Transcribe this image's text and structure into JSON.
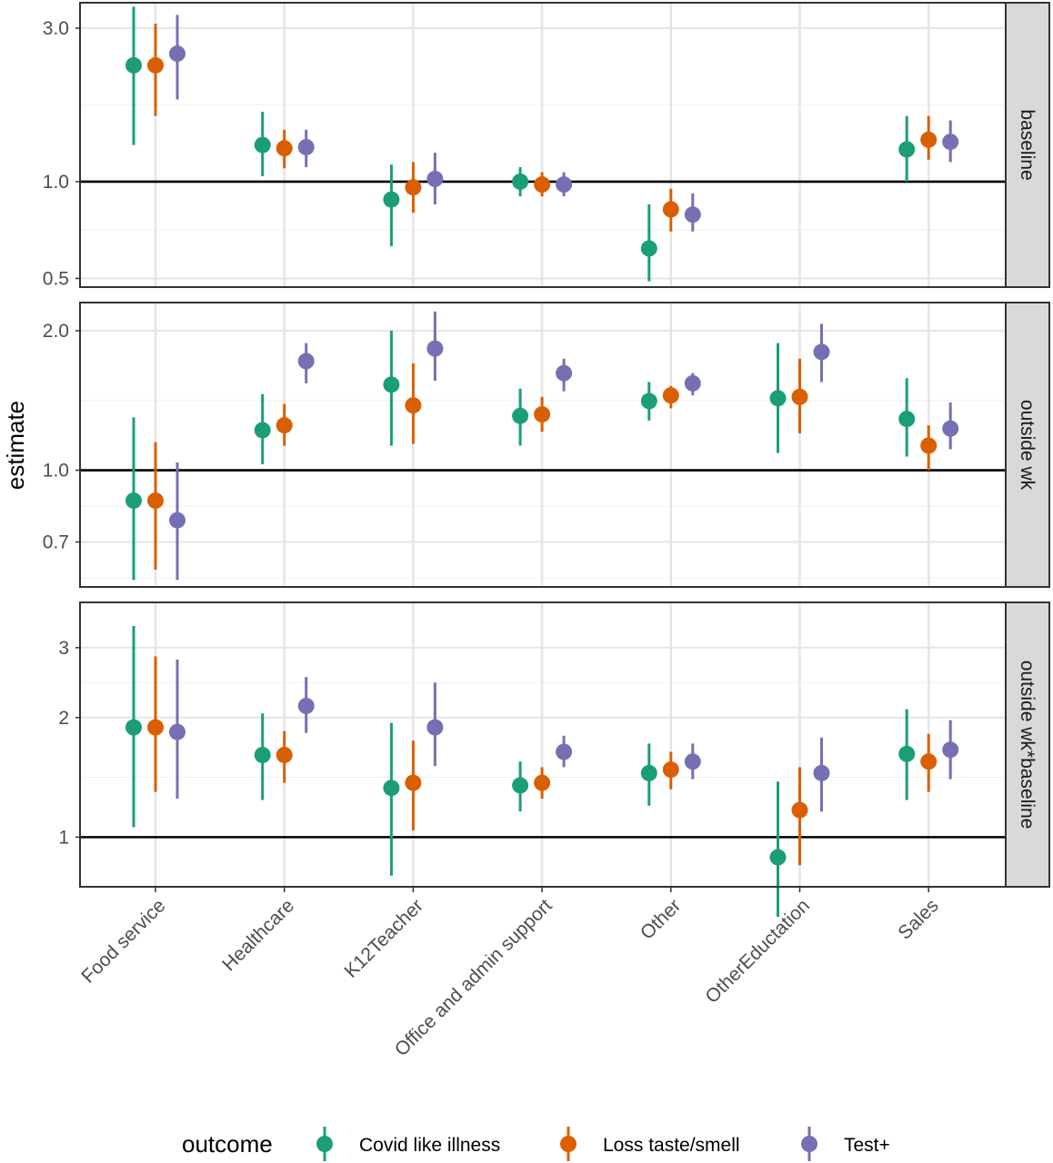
{
  "chart_data": {
    "type": "pointrange",
    "ylabel": "estimate",
    "y_scale": "log",
    "categories": [
      "Food service",
      "Healthcare",
      "K12Teacher",
      "Office and admin support",
      "Other",
      "OtherEductation",
      "Sales"
    ],
    "legend": {
      "title": "outcome",
      "placement": "bottom",
      "entries": [
        "Covid like illness",
        "Loss taste/smell",
        "Test+"
      ]
    },
    "colors": {
      "Covid like illness": "#1b9e77",
      "Loss taste/smell": "#d95f02",
      "Test+": "#7570b3"
    },
    "reference_line": 1.0,
    "panels": [
      {
        "strip": "baseline",
        "ylim": [
          0.47,
          3.6
        ],
        "yticks": [
          0.5,
          1.0,
          3.0
        ],
        "ytick_labels": [
          "0.5",
          "1.0",
          "3.0"
        ],
        "series": [
          {
            "name": "Covid like illness",
            "est": [
              2.3,
              1.3,
              0.88,
              1.0,
              0.62,
              null,
              1.26
            ],
            "lo": [
              1.3,
              1.04,
              0.63,
              0.9,
              0.49,
              null,
              1.0
            ],
            "hi": [
              3.5,
              1.65,
              1.13,
              1.11,
              0.85,
              null,
              1.6
            ]
          },
          {
            "name": "Loss taste/smell",
            "est": [
              2.3,
              1.27,
              0.96,
              0.98,
              0.82,
              null,
              1.35
            ],
            "lo": [
              1.6,
              1.1,
              0.8,
              0.9,
              0.7,
              null,
              1.17
            ],
            "hi": [
              3.1,
              1.45,
              1.15,
              1.07,
              0.95,
              null,
              1.6
            ]
          },
          {
            "name": "Test+",
            "est": [
              2.5,
              1.28,
              1.02,
              0.98,
              0.79,
              null,
              1.33
            ],
            "lo": [
              1.8,
              1.11,
              0.85,
              0.9,
              0.7,
              null,
              1.15
            ],
            "hi": [
              3.3,
              1.45,
              1.23,
              1.07,
              0.92,
              null,
              1.55
            ]
          }
        ]
      },
      {
        "strip": "outside wk",
        "ylim": [
          0.56,
          2.3
        ],
        "yticks": [
          0.7,
          1.0,
          2.0
        ],
        "ytick_labels": [
          "0.7",
          "1.0",
          "2.0"
        ],
        "series": [
          {
            "name": "Covid like illness",
            "est": [
              0.86,
              1.22,
              1.53,
              1.31,
              1.41,
              1.43,
              1.29
            ],
            "lo": [
              0.58,
              1.03,
              1.13,
              1.13,
              1.28,
              1.09,
              1.07
            ],
            "hi": [
              1.3,
              1.46,
              2.0,
              1.5,
              1.55,
              1.88,
              1.58
            ]
          },
          {
            "name": "Loss taste/smell",
            "est": [
              0.86,
              1.25,
              1.38,
              1.32,
              1.45,
              1.44,
              1.13
            ],
            "lo": [
              0.61,
              1.13,
              1.14,
              1.21,
              1.36,
              1.2,
              1.0
            ],
            "hi": [
              1.15,
              1.39,
              1.7,
              1.44,
              1.52,
              1.74,
              1.25
            ]
          },
          {
            "name": "Test+",
            "est": [
              0.78,
              1.72,
              1.83,
              1.62,
              1.54,
              1.8,
              1.23
            ],
            "lo": [
              0.58,
              1.54,
              1.56,
              1.48,
              1.45,
              1.55,
              1.11
            ],
            "hi": [
              1.04,
              1.88,
              2.2,
              1.74,
              1.62,
              2.07,
              1.4
            ]
          }
        ]
      },
      {
        "strip": "outside wk*baseline",
        "ylim": [
          0.75,
          3.9
        ],
        "yticks": [
          1,
          2,
          3
        ],
        "ytick_labels": [
          "1",
          "2",
          "3"
        ],
        "series": [
          {
            "name": "Covid like illness",
            "est": [
              1.89,
              1.61,
              1.33,
              1.35,
              1.45,
              0.89,
              1.62
            ],
            "lo": [
              1.06,
              1.24,
              0.8,
              1.16,
              1.2,
              0.63,
              1.24
            ],
            "hi": [
              3.4,
              2.05,
              1.94,
              1.55,
              1.72,
              1.38,
              2.1
            ]
          },
          {
            "name": "Loss taste/smell",
            "est": [
              1.89,
              1.61,
              1.37,
              1.37,
              1.48,
              1.17,
              1.55
            ],
            "lo": [
              1.3,
              1.37,
              1.04,
              1.25,
              1.32,
              0.85,
              1.3
            ],
            "hi": [
              2.85,
              1.85,
              1.75,
              1.5,
              1.64,
              1.5,
              1.82
            ]
          },
          {
            "name": "Test+",
            "est": [
              1.84,
              2.14,
              1.89,
              1.64,
              1.55,
              1.45,
              1.66
            ],
            "lo": [
              1.25,
              1.83,
              1.51,
              1.5,
              1.4,
              1.16,
              1.4
            ],
            "hi": [
              2.8,
              2.53,
              2.45,
              1.8,
              1.72,
              1.78,
              1.97
            ]
          }
        ]
      }
    ]
  }
}
